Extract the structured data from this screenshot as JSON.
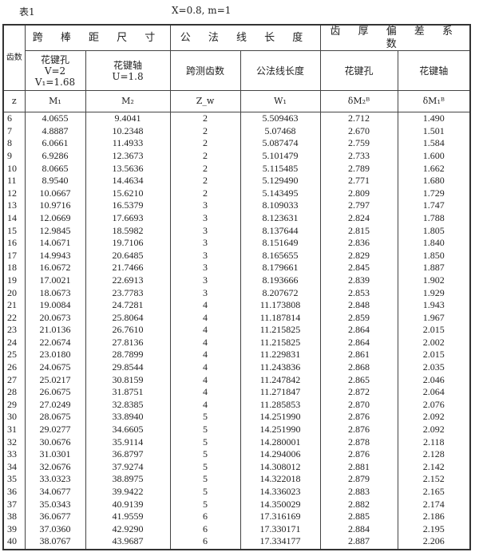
{
  "caption": {
    "label": "表1",
    "params": "X=0.8,  m=1"
  },
  "header": {
    "tooth_count": "齿数",
    "groups": [
      "跨 棒 距 尺 寸",
      "公 法 线 长 度",
      "齿 厚 偏 差 系 数"
    ],
    "sub": {
      "hole_title": "花键孔",
      "hole_v": "V=2",
      "hole_v1": "V₁=1.68",
      "shaft_title": "花键轴",
      "shaft_u": "U=1.8",
      "span_teeth": "跨测齿数",
      "normal_len": "公法线长度",
      "dev_hole": "花键孔",
      "dev_shaft": "花键轴"
    },
    "symbols": [
      "z",
      "M₁",
      "M₂",
      "Z_w",
      "W₁",
      "δM₂ᴮ",
      "δM₁ᴮ"
    ]
  },
  "rows": [
    [
      "6",
      "4.0655",
      "9.4041",
      "2",
      "5.509463",
      "2.712",
      "1.490"
    ],
    [
      "7",
      "4.8887",
      "10.2348",
      "2",
      "5.07468",
      "2.670",
      "1.501"
    ],
    [
      "8",
      "6.0661",
      "11.4933",
      "2",
      "5.087474",
      "2.759",
      "1.584"
    ],
    [
      "9",
      "6.9286",
      "12.3673",
      "2",
      "5.101479",
      "2.733",
      "1.600"
    ],
    [
      "10",
      "8.0665",
      "13.5636",
      "2",
      "5.115485",
      "2.789",
      "1.662"
    ],
    [
      "11",
      "8.9540",
      "14.4634",
      "2",
      "5.129490",
      "2.771",
      "1.680"
    ],
    [
      "12",
      "10.0667",
      "15.6210",
      "2",
      "5.143495",
      "2.809",
      "1.729"
    ],
    [
      "13",
      "10.9716",
      "16.5379",
      "3",
      "8.109033",
      "2.797",
      "1.747"
    ],
    [
      "14",
      "12.0669",
      "17.6693",
      "3",
      "8.123631",
      "2.824",
      "1.788"
    ],
    [
      "15",
      "12.9845",
      "18.5982",
      "3",
      "8.137644",
      "2.815",
      "1.805"
    ],
    [
      "16",
      "14.0671",
      "19.7106",
      "3",
      "8.151649",
      "2.836",
      "1.840"
    ],
    [
      "17",
      "14.9943",
      "20.6485",
      "3",
      "8.165655",
      "2.829",
      "1.850"
    ],
    [
      "18",
      "16.0672",
      "21.7466",
      "3",
      "8.179661",
      "2.845",
      "1.887"
    ],
    [
      "19",
      "17.0021",
      "22.6913",
      "3",
      "8.193666",
      "2.839",
      "1.902"
    ],
    [
      "20",
      "18.0673",
      "23.7783",
      "3",
      "8.207672",
      "2.853",
      "1.929"
    ],
    [
      "21",
      "19.0084",
      "24.7281",
      "4",
      "11.173808",
      "2.848",
      "1.943"
    ],
    [
      "22",
      "20.0673",
      "25.8064",
      "4",
      "11.187814",
      "2.859",
      "1.967"
    ],
    [
      "23",
      "21.0136",
      "26.7610",
      "4",
      "11.215825",
      "2.864",
      "2.015"
    ],
    [
      "24",
      "22.0674",
      "27.8136",
      "4",
      "11.215825",
      "2.864",
      "2.002"
    ],
    [
      "25",
      "23.0180",
      "28.7899",
      "4",
      "11.229831",
      "2.861",
      "2.015"
    ],
    [
      "26",
      "24.0675",
      "29.8544",
      "4",
      "11.243836",
      "2.868",
      "2.035"
    ],
    [
      "27",
      "25.0217",
      "30.8159",
      "4",
      "11.247842",
      "2.865",
      "2.046"
    ],
    [
      "28",
      "26.0675",
      "31.8751",
      "4",
      "11.271847",
      "2.872",
      "2.064"
    ],
    [
      "29",
      "27.0249",
      "32.8385",
      "4",
      "11.285853",
      "2.870",
      "2.076"
    ],
    [
      "30",
      "28.0675",
      "33.8940",
      "5",
      "14.251990",
      "2.876",
      "2.092"
    ],
    [
      "31",
      "29.0277",
      "34.6605",
      "5",
      "14.251990",
      "2.876",
      "2.092"
    ],
    [
      "32",
      "30.0676",
      "35.9114",
      "5",
      "14.280001",
      "2.878",
      "2.118"
    ],
    [
      "33",
      "31.0301",
      "36.8797",
      "5",
      "14.294006",
      "2.876",
      "2.128"
    ],
    [
      "34",
      "32.0676",
      "37.9274",
      "5",
      "14.308012",
      "2.881",
      "2.142"
    ],
    [
      "35",
      "33.0323",
      "38.8975",
      "5",
      "14.322018",
      "2.879",
      "2.152"
    ],
    [
      "36",
      "34.0677",
      "39.9422",
      "5",
      "14.336023",
      "2.883",
      "2.165"
    ],
    [
      "37",
      "35.0343",
      "40.9139",
      "5",
      "14.350029",
      "2.882",
      "2.174"
    ],
    [
      "38",
      "36.0677",
      "41.9559",
      "6",
      "17.316169",
      "2.885",
      "2.186"
    ],
    [
      "39",
      "37.0360",
      "42.9290",
      "6",
      "17.330171",
      "2.884",
      "2.195"
    ],
    [
      "40",
      "38.0767",
      "43.9687",
      "6",
      "17.334177",
      "2.887",
      "2.206"
    ]
  ]
}
